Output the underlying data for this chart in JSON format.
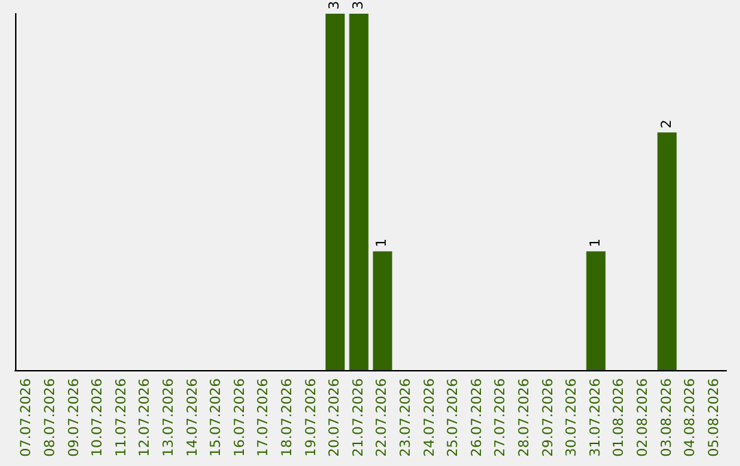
{
  "chart_data": {
    "type": "bar",
    "categories": [
      "07.07.2026",
      "08.07.2026",
      "09.07.2026",
      "10.07.2026",
      "11.07.2026",
      "12.07.2026",
      "13.07.2026",
      "14.07.2026",
      "15.07.2026",
      "16.07.2026",
      "17.07.2026",
      "18.07.2026",
      "19.07.2026",
      "20.07.2026",
      "21.07.2026",
      "22.07.2026",
      "23.07.2026",
      "24.07.2026",
      "25.07.2026",
      "26.07.2026",
      "27.07.2026",
      "28.07.2026",
      "29.07.2026",
      "30.07.2026",
      "31.07.2026",
      "01.08.2026",
      "02.08.2026",
      "03.08.2026",
      "04.08.2026",
      "05.08.2026"
    ],
    "values": [
      null,
      null,
      null,
      null,
      null,
      null,
      null,
      null,
      null,
      null,
      null,
      null,
      null,
      3,
      3,
      1,
      null,
      null,
      null,
      null,
      null,
      null,
      null,
      null,
      1,
      null,
      null,
      2,
      null,
      null
    ],
    "data_labels": true,
    "color": "#336600",
    "tick_labels": "x"
  }
}
